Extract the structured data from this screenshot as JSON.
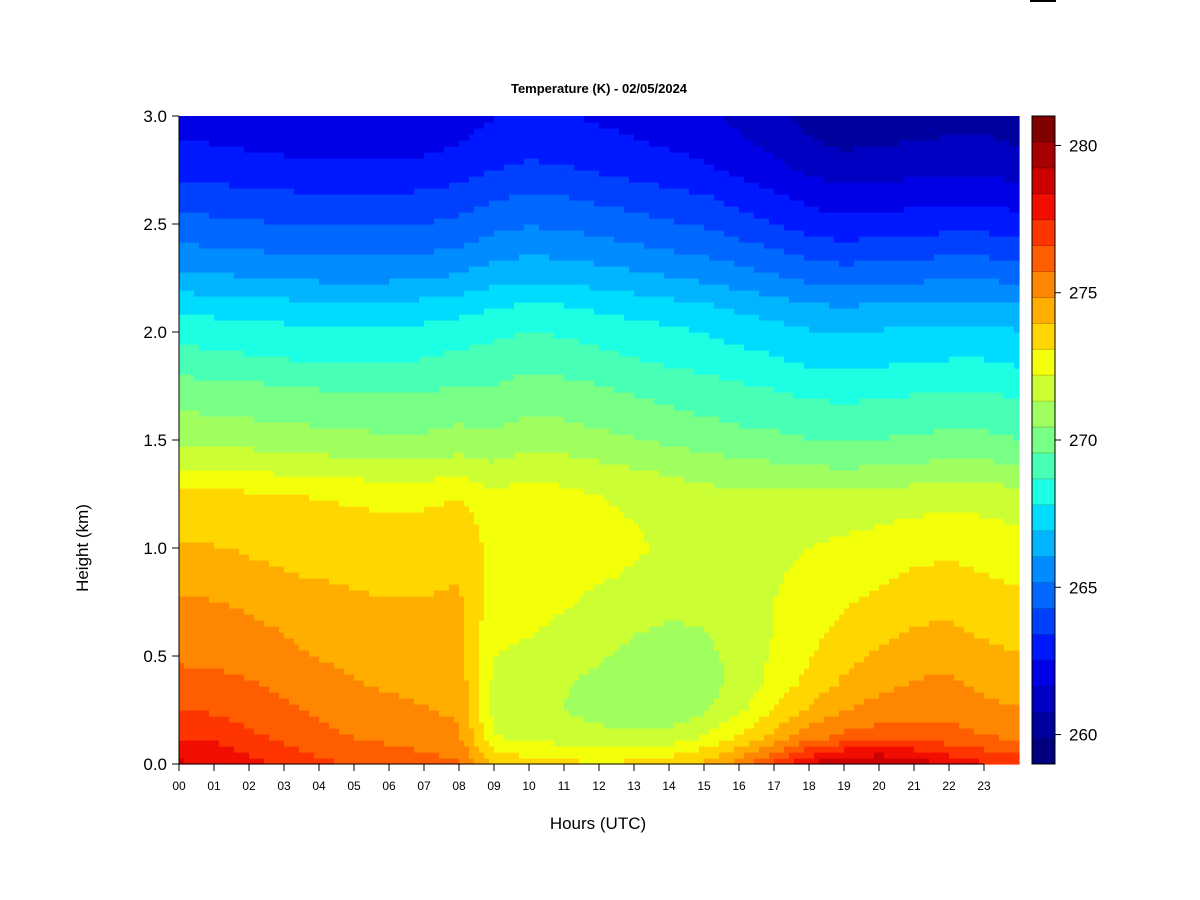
{
  "chart_data": {
    "type": "heatmap",
    "title": "Temperature (K) - 02/05/2024",
    "xlabel": "Hours (UTC)",
    "ylabel": "Height (km)",
    "xlim": [
      0,
      24
    ],
    "ylim": [
      0.0,
      3.0
    ],
    "x_ticks": [
      "00",
      "01",
      "02",
      "03",
      "04",
      "05",
      "06",
      "07",
      "08",
      "09",
      "10",
      "11",
      "12",
      "13",
      "14",
      "15",
      "16",
      "17",
      "18",
      "19",
      "20",
      "21",
      "22",
      "23"
    ],
    "y_ticks": [
      "0.0",
      "0.5",
      "1.0",
      "1.5",
      "2.0",
      "2.5",
      "3.0"
    ],
    "colorbar": {
      "range": [
        259,
        281
      ],
      "ticks": [
        "260",
        "265",
        "270",
        "275",
        "280"
      ],
      "colors": [
        "#00007f",
        "#00009f",
        "#0000c3",
        "#0000e6",
        "#0018ff",
        "#0040ff",
        "#0068ff",
        "#008cff",
        "#00b4ff",
        "#00dcff",
        "#1cffe2",
        "#48ffb6",
        "#78ff86",
        "#a0ff5e",
        "#cbff34",
        "#f4ff0a",
        "#ffd600",
        "#ffae00",
        "#ff8600",
        "#ff5e00",
        "#ff3500",
        "#f10d00",
        "#cc0000",
        "#a60000",
        "#800000"
      ]
    },
    "profiles": [
      {
        "hour": 0,
        "temps": [
          278.5,
          277.4,
          276.6,
          276.2,
          275.5,
          275.3,
          275.0,
          274.3,
          274.0,
          273.7,
          273.4,
          272.2,
          271.2,
          270.5,
          269.9,
          269.0,
          268.4,
          267.5,
          266.3,
          265.4,
          264.6,
          263.9,
          263.1,
          262.6,
          262.1
        ]
      },
      {
        "hour": 1,
        "temps": [
          278.3,
          277.3,
          276.5,
          276.1,
          275.4,
          275.2,
          274.9,
          274.3,
          274.0,
          273.7,
          273.3,
          272.1,
          271.1,
          270.4,
          269.8,
          268.9,
          268.3,
          267.4,
          266.2,
          265.3,
          264.5,
          263.8,
          263.0,
          262.5,
          262.0
        ]
      },
      {
        "hour": 2,
        "temps": [
          277.8,
          276.8,
          276.2,
          275.8,
          275.2,
          275.0,
          274.7,
          274.1,
          273.9,
          273.6,
          273.2,
          272.0,
          271.0,
          270.3,
          269.7,
          268.8,
          268.2,
          267.3,
          266.1,
          265.2,
          264.4,
          263.7,
          262.9,
          262.4,
          261.9
        ]
      },
      {
        "hour": 3,
        "temps": [
          277.2,
          276.4,
          275.9,
          275.5,
          275.0,
          274.8,
          274.5,
          274.0,
          273.8,
          273.5,
          273.1,
          271.9,
          270.9,
          270.2,
          269.6,
          268.7,
          268.1,
          267.2,
          266.0,
          265.1,
          264.3,
          263.6,
          262.8,
          262.3,
          261.8
        ]
      },
      {
        "hour": 4,
        "temps": [
          276.8,
          276.0,
          275.6,
          275.2,
          274.8,
          274.6,
          274.3,
          273.9,
          273.7,
          273.4,
          273.0,
          271.8,
          270.8,
          270.1,
          269.5,
          268.6,
          268.0,
          267.1,
          265.9,
          265.0,
          264.2,
          263.5,
          262.7,
          262.2,
          261.7
        ]
      },
      {
        "hour": 5,
        "temps": [
          276.5,
          275.7,
          275.3,
          274.9,
          274.6,
          274.4,
          274.1,
          273.8,
          273.6,
          273.3,
          272.9,
          271.7,
          270.7,
          270.0,
          269.4,
          268.6,
          268.0,
          267.1,
          265.9,
          265.0,
          264.2,
          263.5,
          262.7,
          262.2,
          261.8
        ]
      },
      {
        "hour": 6,
        "temps": [
          276.3,
          275.5,
          275.1,
          274.7,
          274.4,
          274.2,
          274.0,
          273.7,
          273.5,
          273.2,
          272.8,
          271.6,
          270.6,
          270.0,
          269.4,
          268.6,
          268.0,
          267.1,
          265.9,
          265.0,
          264.2,
          263.5,
          262.7,
          262.2,
          261.8
        ]
      },
      {
        "hour": 7,
        "temps": [
          276.1,
          275.3,
          274.9,
          274.6,
          274.3,
          274.1,
          274.0,
          273.8,
          273.6,
          273.3,
          272.8,
          271.6,
          270.6,
          270.0,
          269.4,
          268.7,
          268.1,
          267.2,
          266.0,
          265.1,
          264.3,
          263.6,
          262.8,
          262.3,
          261.9
        ]
      },
      {
        "hour": 8,
        "temps": [
          275.8,
          275.0,
          274.7,
          274.5,
          274.3,
          274.2,
          274.1,
          273.9,
          273.8,
          273.5,
          273.0,
          271.8,
          270.8,
          270.2,
          269.6,
          268.9,
          268.3,
          267.4,
          266.2,
          265.3,
          264.5,
          263.8,
          263.0,
          262.5,
          262.1
        ]
      },
      {
        "hour": 9,
        "temps": [
          273.8,
          272.3,
          271.9,
          272.0,
          272.2,
          272.4,
          272.6,
          272.7,
          272.8,
          272.6,
          272.3,
          271.5,
          270.6,
          270.1,
          269.6,
          269.0,
          268.5,
          267.7,
          266.6,
          265.7,
          264.9,
          264.2,
          263.4,
          262.9,
          262.5
        ]
      },
      {
        "hour": 10,
        "temps": [
          273.5,
          272.0,
          271.6,
          271.7,
          272.0,
          272.3,
          272.6,
          272.8,
          273.0,
          272.9,
          272.6,
          271.9,
          271.0,
          270.4,
          269.9,
          269.2,
          268.7,
          267.9,
          266.8,
          265.9,
          265.1,
          264.4,
          263.6,
          263.1,
          262.7
        ]
      },
      {
        "hour": 11,
        "temps": [
          273.3,
          271.8,
          271.3,
          271.4,
          271.7,
          272.0,
          272.3,
          272.5,
          272.7,
          272.6,
          272.4,
          271.7,
          270.9,
          270.3,
          269.8,
          269.1,
          268.6,
          267.8,
          266.7,
          265.8,
          265.0,
          264.3,
          263.5,
          263.0,
          262.6
        ]
      },
      {
        "hour": 12,
        "temps": [
          273.2,
          271.6,
          271.0,
          271.1,
          271.4,
          271.7,
          272.0,
          272.3,
          272.5,
          272.4,
          272.2,
          271.5,
          270.7,
          270.1,
          269.6,
          268.9,
          268.4,
          267.6,
          266.5,
          265.6,
          264.8,
          264.1,
          263.3,
          262.8,
          262.4
        ]
      },
      {
        "hour": 13,
        "temps": [
          273.3,
          271.5,
          270.8,
          270.8,
          271.1,
          271.4,
          271.8,
          272.1,
          272.3,
          272.2,
          272.0,
          271.3,
          270.5,
          269.9,
          269.4,
          268.7,
          268.2,
          267.4,
          266.3,
          265.4,
          264.6,
          263.9,
          263.1,
          262.6,
          262.2
        ]
      },
      {
        "hour": 14,
        "temps": [
          273.6,
          271.7,
          270.7,
          270.6,
          270.9,
          271.2,
          271.6,
          271.9,
          272.1,
          272.0,
          271.8,
          271.1,
          270.3,
          269.7,
          269.2,
          268.5,
          268.0,
          267.2,
          266.1,
          265.2,
          264.4,
          263.7,
          262.9,
          262.4,
          262.0
        ]
      },
      {
        "hour": 15,
        "temps": [
          274.2,
          272.3,
          271.2,
          270.9,
          271.1,
          271.3,
          271.6,
          271.8,
          271.9,
          271.8,
          271.6,
          270.9,
          270.1,
          269.5,
          269.0,
          268.3,
          267.8,
          267.0,
          265.9,
          265.0,
          264.2,
          263.5,
          262.7,
          262.2,
          261.8
        ]
      },
      {
        "hour": 16,
        "temps": [
          275.3,
          273.2,
          272.0,
          271.6,
          271.6,
          271.7,
          271.8,
          271.8,
          271.8,
          271.6,
          271.4,
          270.7,
          269.9,
          269.3,
          268.8,
          268.1,
          267.5,
          266.7,
          265.6,
          264.7,
          263.8,
          263.1,
          262.3,
          261.8,
          261.4
        ]
      },
      {
        "hour": 17,
        "temps": [
          276.8,
          274.3,
          273.1,
          272.5,
          272.3,
          272.2,
          272.2,
          272.1,
          272.0,
          271.8,
          271.5,
          270.6,
          269.8,
          269.2,
          268.6,
          267.9,
          267.3,
          266.4,
          265.3,
          264.4,
          263.4,
          262.7,
          261.9,
          261.4,
          261.0
        ]
      },
      {
        "hour": 18,
        "temps": [
          278.4,
          275.4,
          274.1,
          273.4,
          273.0,
          272.8,
          272.6,
          272.4,
          272.2,
          271.9,
          271.5,
          270.5,
          269.6,
          269.0,
          268.4,
          267.6,
          267.0,
          266.1,
          265.0,
          264.0,
          263.0,
          262.3,
          261.5,
          260.9,
          260.5
        ]
      },
      {
        "hour": 19,
        "temps": [
          279.3,
          276.0,
          274.8,
          274.1,
          273.7,
          273.3,
          273.0,
          272.7,
          272.4,
          272.0,
          271.5,
          270.4,
          269.5,
          268.9,
          268.3,
          267.5,
          266.9,
          266.0,
          264.8,
          263.8,
          262.8,
          262.0,
          261.2,
          260.6,
          260.1
        ]
      },
      {
        "hour": 20,
        "temps": [
          279.5,
          276.2,
          275.2,
          274.6,
          274.1,
          273.7,
          273.3,
          272.9,
          272.6,
          272.1,
          271.6,
          270.5,
          269.6,
          269.0,
          268.4,
          267.6,
          267.0,
          266.1,
          264.9,
          263.9,
          262.9,
          262.1,
          261.3,
          260.7,
          260.2
        ]
      },
      {
        "hour": 21,
        "temps": [
          279.0,
          276.3,
          275.4,
          274.9,
          274.5,
          274.0,
          273.6,
          273.2,
          272.8,
          272.3,
          271.7,
          270.6,
          269.7,
          269.1,
          268.5,
          267.7,
          267.1,
          266.2,
          265.0,
          264.0,
          263.0,
          262.2,
          261.4,
          260.8,
          260.3
        ]
      },
      {
        "hour": 22,
        "temps": [
          278.2,
          276.1,
          275.4,
          275.0,
          274.6,
          274.1,
          273.7,
          273.3,
          272.9,
          272.4,
          271.8,
          270.7,
          269.8,
          269.2,
          268.6,
          267.8,
          267.2,
          266.3,
          265.1,
          264.1,
          263.1,
          262.3,
          261.5,
          260.9,
          260.4
        ]
      },
      {
        "hour": 23,
        "temps": [
          277.6,
          275.8,
          275.1,
          274.6,
          274.2,
          273.8,
          273.5,
          273.1,
          272.8,
          272.3,
          271.8,
          270.7,
          269.8,
          269.2,
          268.6,
          267.8,
          267.2,
          266.3,
          265.1,
          264.1,
          263.1,
          262.3,
          261.5,
          260.9,
          260.5
        ]
      },
      {
        "hour": 24,
        "temps": [
          277.3,
          275.6,
          274.9,
          274.4,
          274.0,
          273.6,
          273.3,
          272.9,
          272.6,
          272.1,
          271.6,
          270.5,
          269.6,
          269.0,
          268.4,
          267.6,
          267.0,
          266.1,
          264.9,
          263.9,
          262.9,
          262.1,
          261.3,
          260.7,
          260.3
        ]
      }
    ],
    "profile_heights": [
      0.0,
      0.125,
      0.25,
      0.375,
      0.5,
      0.625,
      0.75,
      0.875,
      1.0,
      1.125,
      1.25,
      1.375,
      1.5,
      1.625,
      1.75,
      1.875,
      2.0,
      2.125,
      2.25,
      2.375,
      2.5,
      2.625,
      2.75,
      2.875,
      3.0
    ],
    "grid": false,
    "legend": "right colorbar"
  }
}
